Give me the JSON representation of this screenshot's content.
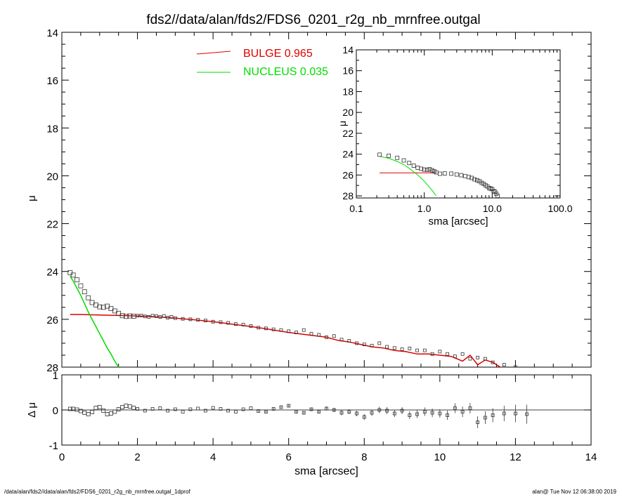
{
  "title": "fds2//data/alan/fds2/FDS6_0201_r2g_nb_mrnfree.outgal",
  "footer": {
    "left": "/data/alan/fds2//data/alan/fds2/FDS6_0201_r2g_nb_mrnfree.outgal_1dprof",
    "right": "alan@  Tue Nov 12 06:38:00 2019"
  },
  "colors": {
    "bulge": "#e00000",
    "nucleus": "#00dd00",
    "data": "#000000"
  },
  "chart_data": [
    {
      "name": "main-profile",
      "type": "line",
      "title": "fds2//data/alan/fds2/FDS6_0201_r2g_nb_mrnfree.outgal",
      "xlabel": "",
      "ylabel": "μ",
      "xlim": [
        0,
        14
      ],
      "ylim": [
        28,
        14
      ],
      "xticks": [
        "0",
        "2",
        "4",
        "6",
        "8",
        "10",
        "12",
        "14"
      ],
      "yticks": [
        "14",
        "16",
        "18",
        "20",
        "22",
        "24",
        "26",
        "28"
      ],
      "legend": [
        {
          "label": "BULGE  0.965",
          "color": "#e00000"
        },
        {
          "label": "NUCLEUS  0.035",
          "color": "#00dd00"
        }
      ],
      "legend_position": "top-center",
      "series": [
        {
          "name": "BULGE  0.965",
          "kind": "line",
          "color": "#e00000",
          "x": [
            0.22,
            0.5,
            1.0,
            1.5,
            2.0,
            2.5,
            3.0,
            3.5,
            4.0,
            4.5,
            5.0,
            5.5,
            6.0,
            6.5,
            7.0,
            7.3,
            7.6,
            7.9,
            8.2,
            8.5,
            8.8,
            9.1,
            9.4,
            9.7,
            10.0,
            10.3,
            10.6,
            10.8,
            11.0,
            11.2,
            11.4,
            11.6,
            11.75
          ],
          "y": [
            25.8,
            25.8,
            25.82,
            25.84,
            25.86,
            25.9,
            25.95,
            26.02,
            26.1,
            26.2,
            26.3,
            26.42,
            26.55,
            26.65,
            26.75,
            26.88,
            26.95,
            27.05,
            27.15,
            27.2,
            27.3,
            27.35,
            27.45,
            27.45,
            27.5,
            27.55,
            27.75,
            27.5,
            27.9,
            27.7,
            27.8,
            28.0,
            28.2
          ]
        },
        {
          "name": "NUCLEUS  0.035",
          "kind": "line",
          "color": "#00dd00",
          "x": [
            0.22,
            0.3,
            0.4,
            0.5,
            0.6,
            0.7,
            0.8,
            0.9,
            1.0,
            1.1,
            1.2,
            1.3,
            1.4,
            1.5
          ],
          "y": [
            24.2,
            24.4,
            24.7,
            25.0,
            25.35,
            25.7,
            26.0,
            26.3,
            26.6,
            26.9,
            27.2,
            27.45,
            27.75,
            28.0
          ]
        },
        {
          "name": "",
          "kind": "markers",
          "color": "#000000",
          "x": [
            0.22,
            0.3,
            0.4,
            0.5,
            0.6,
            0.7,
            0.8,
            0.9,
            1.0,
            1.1,
            1.2,
            1.3,
            1.4,
            1.5,
            1.6,
            1.7,
            1.8,
            1.9,
            2.0,
            2.1,
            2.2,
            2.3,
            2.4,
            2.5,
            2.6,
            2.7,
            2.8,
            2.9,
            3.0,
            3.2,
            3.4,
            3.6,
            3.8,
            4.0,
            4.2,
            4.4,
            4.6,
            4.8,
            5.0,
            5.2,
            5.4,
            5.6,
            5.8,
            6.0,
            6.2,
            6.4,
            6.6,
            6.8,
            7.0,
            7.2,
            7.4,
            7.6,
            7.8,
            8.0,
            8.2,
            8.4,
            8.6,
            8.8,
            9.0,
            9.2,
            9.4,
            9.6,
            9.8,
            10.0,
            10.2,
            10.4,
            10.6,
            10.8,
            11.0,
            11.2,
            11.4,
            11.7,
            12.0
          ],
          "y": [
            24.05,
            24.15,
            24.35,
            24.6,
            24.85,
            25.1,
            25.3,
            25.4,
            25.48,
            25.5,
            25.45,
            25.55,
            25.65,
            25.75,
            25.85,
            25.88,
            25.86,
            25.87,
            25.85,
            25.84,
            25.88,
            25.9,
            25.85,
            25.87,
            25.9,
            25.86,
            25.93,
            25.9,
            25.95,
            25.98,
            26.0,
            26.02,
            26.05,
            26.1,
            26.12,
            26.15,
            26.2,
            26.22,
            26.28,
            26.35,
            26.38,
            26.42,
            26.45,
            26.5,
            26.55,
            26.45,
            26.6,
            26.65,
            26.75,
            26.7,
            26.85,
            26.9,
            27.0,
            27.05,
            27.1,
            27.0,
            27.15,
            27.2,
            27.25,
            27.22,
            27.3,
            27.3,
            27.45,
            27.35,
            27.45,
            27.55,
            27.45,
            27.65,
            27.6,
            27.65,
            27.8,
            27.9,
            28.0
          ]
        }
      ]
    },
    {
      "name": "inset-log-profile",
      "type": "line",
      "xlabel": "sma [arcsec]",
      "ylabel": "μ",
      "xscale": "log",
      "xlim": [
        0.1,
        100.0
      ],
      "ylim": [
        28.2,
        14
      ],
      "xticks": [
        "0.1",
        "1.0",
        "10.0",
        "100.0"
      ],
      "yticks": [
        "14",
        "16",
        "18",
        "20",
        "22",
        "24",
        "26",
        "28"
      ],
      "series": [
        {
          "name": "BULGE",
          "kind": "line",
          "color": "#e00000",
          "x": [
            0.22,
            1.5
          ],
          "y": [
            25.8,
            25.8
          ]
        },
        {
          "name": "NUCLEUS",
          "kind": "line",
          "color": "#00dd00",
          "x": [
            0.22,
            0.3,
            0.4,
            0.5,
            0.6,
            0.7,
            0.8,
            0.9,
            1.0,
            1.1,
            1.2,
            1.3,
            1.4,
            1.5
          ],
          "y": [
            24.2,
            24.4,
            24.7,
            25.0,
            25.35,
            25.7,
            26.0,
            26.3,
            26.6,
            26.9,
            27.2,
            27.45,
            27.75,
            28.0
          ]
        },
        {
          "name": "",
          "kind": "markers",
          "color": "#000000",
          "x": [
            0.22,
            0.3,
            0.4,
            0.5,
            0.6,
            0.7,
            0.8,
            0.9,
            1.0,
            1.1,
            1.2,
            1.3,
            1.4,
            1.5,
            1.7,
            2.0,
            2.5,
            3.0,
            3.5,
            4.0,
            4.5,
            5.0,
            5.5,
            6.0,
            6.5,
            7.0,
            7.5,
            8.0,
            8.5,
            9.0,
            9.5,
            10.0,
            10.5,
            11.0,
            11.5,
            12.0
          ],
          "y": [
            24.05,
            24.15,
            24.35,
            24.6,
            24.85,
            25.1,
            25.3,
            25.4,
            25.48,
            25.5,
            25.45,
            25.55,
            25.65,
            25.75,
            25.88,
            25.85,
            25.87,
            25.95,
            26.02,
            26.1,
            26.2,
            26.28,
            26.42,
            26.5,
            26.6,
            26.75,
            26.85,
            27.0,
            27.1,
            27.25,
            27.3,
            27.35,
            27.55,
            27.6,
            27.8,
            28.0
          ]
        }
      ]
    },
    {
      "name": "residuals",
      "type": "scatter",
      "xlabel": "sma [arcsec]",
      "ylabel": "Δ μ",
      "xlim": [
        0,
        14
      ],
      "ylim": [
        -1,
        1
      ],
      "xticks": [
        "0",
        "2",
        "4",
        "6",
        "8",
        "10",
        "12",
        "14"
      ],
      "yticks": [
        "1",
        "0",
        "-1"
      ],
      "series": [
        {
          "name": "",
          "kind": "markers-with-errorbars",
          "color": "#000000",
          "x": [
            0.22,
            0.3,
            0.4,
            0.5,
            0.6,
            0.7,
            0.8,
            0.9,
            1.0,
            1.1,
            1.2,
            1.3,
            1.4,
            1.5,
            1.6,
            1.7,
            1.8,
            1.9,
            2.0,
            2.2,
            2.4,
            2.6,
            2.8,
            3.0,
            3.2,
            3.4,
            3.6,
            3.8,
            4.0,
            4.2,
            4.4,
            4.6,
            4.8,
            5.0,
            5.2,
            5.4,
            5.6,
            5.8,
            6.0,
            6.2,
            6.4,
            6.6,
            6.8,
            7.0,
            7.2,
            7.4,
            7.6,
            7.8,
            8.0,
            8.2,
            8.4,
            8.6,
            8.8,
            9.0,
            9.2,
            9.4,
            9.6,
            9.8,
            10.0,
            10.2,
            10.4,
            10.6,
            10.8,
            11.0,
            11.2,
            11.4,
            11.7,
            12.0,
            12.3
          ],
          "y": [
            0.03,
            0.03,
            0.01,
            -0.03,
            -0.08,
            -0.12,
            -0.06,
            0.06,
            0.08,
            -0.02,
            -0.12,
            -0.1,
            -0.05,
            0.02,
            0.08,
            0.12,
            0.1,
            0.06,
            0.03,
            -0.02,
            0.03,
            0.05,
            -0.02,
            0.02,
            -0.05,
            0.02,
            0.04,
            -0.02,
            0.06,
            0.03,
            -0.02,
            -0.05,
            0.02,
            0.05,
            -0.03,
            -0.05,
            0.03,
            0.08,
            0.12,
            -0.05,
            -0.08,
            0.02,
            -0.05,
            0.04,
            0.0,
            -0.08,
            -0.05,
            -0.1,
            -0.2,
            -0.08,
            0.0,
            -0.02,
            -0.1,
            -0.02,
            -0.15,
            -0.12,
            -0.05,
            -0.08,
            -0.1,
            -0.15,
            0.05,
            -0.05,
            0.05,
            -0.35,
            -0.22,
            -0.15,
            -0.1,
            -0.1,
            -0.12
          ],
          "err": [
            0.01,
            0.01,
            0.01,
            0.01,
            0.01,
            0.01,
            0.01,
            0.01,
            0.01,
            0.01,
            0.01,
            0.01,
            0.01,
            0.01,
            0.01,
            0.01,
            0.01,
            0.01,
            0.01,
            0.01,
            0.01,
            0.01,
            0.01,
            0.01,
            0.01,
            0.01,
            0.01,
            0.01,
            0.02,
            0.02,
            0.02,
            0.02,
            0.02,
            0.02,
            0.03,
            0.03,
            0.03,
            0.03,
            0.04,
            0.04,
            0.05,
            0.05,
            0.05,
            0.06,
            0.06,
            0.07,
            0.07,
            0.08,
            0.08,
            0.09,
            0.09,
            0.1,
            0.1,
            0.1,
            0.11,
            0.11,
            0.12,
            0.12,
            0.12,
            0.13,
            0.14,
            0.15,
            0.15,
            0.17,
            0.18,
            0.2,
            0.22,
            0.25,
            0.27
          ]
        }
      ]
    }
  ]
}
